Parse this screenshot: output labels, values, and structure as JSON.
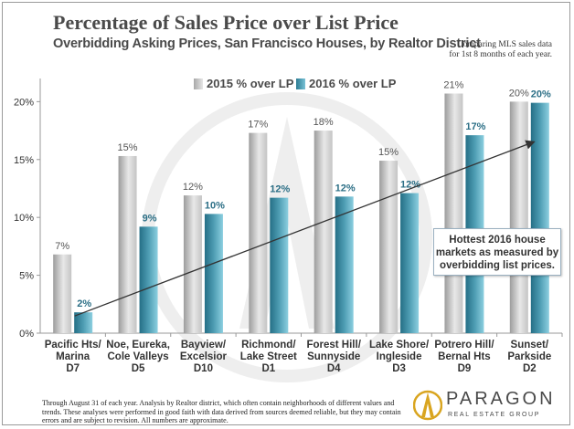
{
  "title": "Percentage of Sales Price over List Price",
  "subtitle": "Overbidding Asking Prices, San Francisco Houses, by Realtor District",
  "note_line1": "Comparing MLS sales data",
  "note_line2": "for 1st 8 months of each year.",
  "callout": {
    "line1": "Hottest 2016 house",
    "line2": "markets as measured by",
    "line3": "overbidding list prices."
  },
  "footnote": "Through August 31 of each year. Analysis by Realtor district, which often contain neighborhoods of different values and trends. These analyses were performed in good faith with data derived from sources deemed reliable, but they may contain errors and are subject to revision. All numbers are approximate.",
  "logo": {
    "name": "PARAGON",
    "tagline": "REAL ESTATE GROUP"
  },
  "colors": {
    "series2015": "#c8c8c8",
    "series2016": "#3f8fa6",
    "accent": "#d9a520"
  },
  "chart_data": {
    "type": "bar",
    "categories": [
      [
        "Pacific Hts/",
        "Marina",
        "D7"
      ],
      [
        "Noe, Eureka,",
        "Cole Valleys",
        "D5"
      ],
      [
        "Bayview/",
        "Excelsior",
        "D10"
      ],
      [
        "Richmond/",
        "Lake Street",
        "D1"
      ],
      [
        "Forest Hill/",
        "Sunnyside",
        "D4"
      ],
      [
        "Lake Shore/",
        "Ingleside",
        "D3"
      ],
      [
        "Potrero Hill/",
        "Bernal Hts",
        "D9"
      ],
      [
        "Sunset/",
        "Parkside",
        "D2"
      ]
    ],
    "series": [
      {
        "name": "2015 % over LP",
        "values": [
          6.8,
          15.3,
          11.9,
          17.3,
          17.5,
          14.9,
          20.7,
          20.0
        ],
        "labels": [
          "7%",
          "15%",
          "12%",
          "17%",
          "18%",
          "15%",
          "21%",
          "20%"
        ]
      },
      {
        "name": "2016 % over LP",
        "values": [
          1.8,
          9.2,
          10.3,
          11.7,
          11.8,
          12.1,
          17.1,
          19.9
        ],
        "labels": [
          "2%",
          "9%",
          "10%",
          "12%",
          "12%",
          "12%",
          "17%",
          "20%"
        ]
      }
    ],
    "yticks": [
      "0%",
      "5%",
      "10%",
      "15%",
      "20%"
    ],
    "ylim": [
      0,
      22
    ],
    "trendline": {
      "from_category": 0,
      "from_value": 1.8,
      "to_category": 7,
      "to_value": 16.5
    },
    "grid": false,
    "legend": "top-center"
  }
}
